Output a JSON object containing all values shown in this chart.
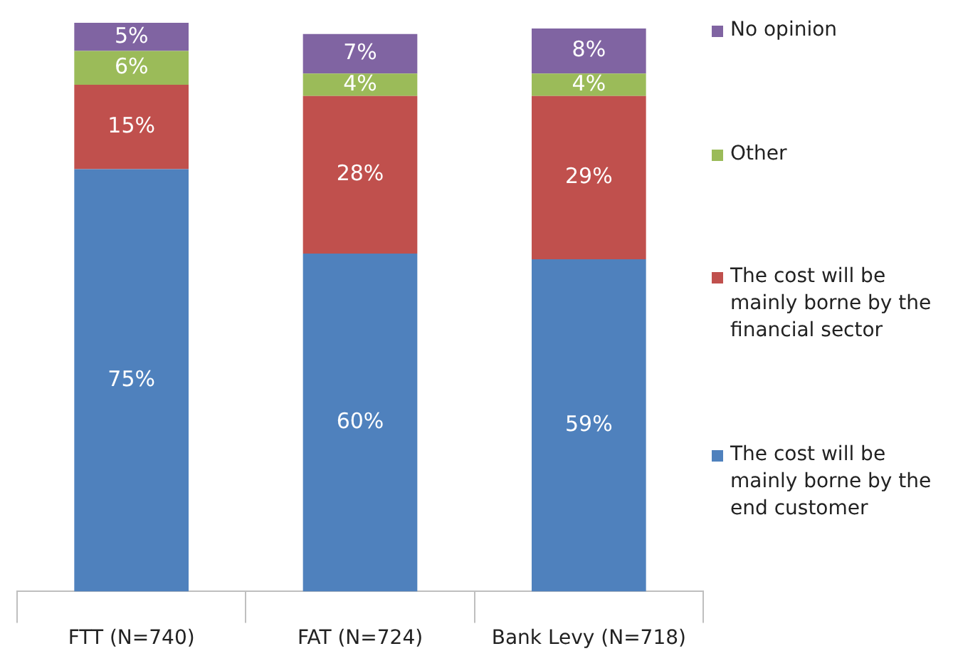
{
  "chart_data": {
    "type": "bar",
    "stacked": true,
    "categories": [
      "FTT (N=740)",
      "FAT (N=724)",
      "Bank Levy (N=718)"
    ],
    "legend": "right",
    "series": [
      {
        "name": "The cost will be mainly borne by the end customer",
        "color": "#4f81bd",
        "values": [
          75,
          60,
          59
        ],
        "value_labels": [
          "75%",
          "60%",
          "59%"
        ]
      },
      {
        "name": "The cost will be mainly borne by the financial sector",
        "color": "#c0504d",
        "values": [
          15,
          28,
          29
        ],
        "value_labels": [
          "15%",
          "28%",
          "29%"
        ]
      },
      {
        "name": "Other",
        "color": "#9bbb59",
        "values": [
          6,
          4,
          4
        ],
        "value_labels": [
          "6%",
          "4%",
          "4%"
        ]
      },
      {
        "name": "No opinion",
        "color": "#8064a2",
        "values": [
          5,
          7,
          8
        ],
        "value_labels": [
          "5%",
          "7%",
          "8%"
        ]
      }
    ]
  }
}
